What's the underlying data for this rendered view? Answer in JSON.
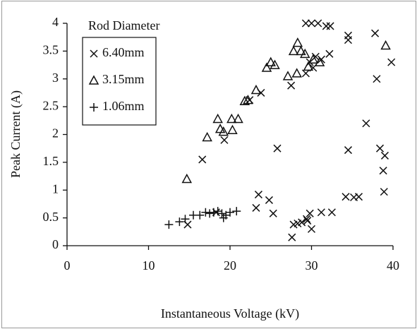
{
  "chart_data": {
    "type": "scatter",
    "xlabel": "Instantaneous Voltage (kV)",
    "ylabel": "Peak Current (A)",
    "legend_title": "Rod Diameter",
    "legend": "upper left",
    "xlim": [
      0,
      40
    ],
    "xticks": [
      0,
      10,
      20,
      30,
      40
    ],
    "ylim": [
      0,
      4
    ],
    "yticks": [
      0,
      0.5,
      1,
      1.5,
      2,
      2.5,
      3,
      3.5,
      4
    ],
    "series": [
      {
        "name": "6.40mm",
        "marker": "x",
        "color": "#111111",
        "x": [
          16.6,
          19.3,
          22.4,
          23.8,
          27.5,
          29.3,
          29.8,
          30.2,
          30.5,
          31.2,
          32.2,
          29.3,
          30.0,
          30.8,
          31.8,
          32.3,
          34.5,
          34.5,
          37.8,
          39.8,
          38.0,
          36.7,
          38.4,
          39.0,
          34.5,
          25.8,
          38.8,
          38.9,
          34.2,
          35.2,
          35.8,
          23.5,
          24.8,
          23.2,
          25.3,
          27.6,
          27.8,
          28.3,
          28.8,
          29.4,
          29.8,
          30.0,
          29.5,
          31.2,
          32.5,
          14.8,
          18.3
        ],
        "values": [
          1.55,
          1.9,
          2.62,
          2.75,
          2.88,
          3.1,
          3.3,
          3.2,
          3.4,
          3.35,
          3.45,
          4.0,
          4.0,
          4.0,
          3.95,
          3.95,
          3.78,
          3.7,
          3.82,
          3.3,
          3.0,
          2.2,
          1.75,
          1.62,
          1.72,
          1.75,
          1.35,
          0.97,
          0.88,
          0.87,
          0.88,
          0.92,
          0.82,
          0.68,
          0.58,
          0.15,
          0.38,
          0.4,
          0.42,
          0.48,
          0.58,
          0.3,
          0.45,
          0.6,
          0.6,
          0.38,
          0.6
        ]
      },
      {
        "name": "3.15mm",
        "marker": "triangle",
        "color": "#111111",
        "x": [
          14.7,
          17.2,
          18.5,
          18.8,
          19.2,
          20.2,
          20.3,
          21.0,
          21.8,
          22.2,
          23.2,
          24.5,
          25.0,
          25.5,
          27.1,
          27.8,
          28.3,
          28.2,
          28.7,
          29.2,
          29.6,
          30.2,
          31.0,
          39.1
        ],
        "values": [
          1.2,
          1.95,
          2.28,
          2.1,
          2.05,
          2.28,
          2.08,
          2.28,
          2.6,
          2.62,
          2.8,
          3.2,
          3.3,
          3.25,
          3.05,
          3.5,
          3.65,
          3.1,
          3.5,
          3.45,
          3.22,
          3.35,
          3.3,
          3.6
        ]
      },
      {
        "name": "1.06mm",
        "marker": "plus",
        "color": "#111111",
        "x": [
          12.5,
          13.8,
          14.5,
          15.5,
          16.3,
          17.0,
          17.5,
          18.0,
          18.5,
          19.0,
          19.5,
          20.0,
          20.8,
          19.2
        ],
        "values": [
          0.38,
          0.43,
          0.48,
          0.55,
          0.55,
          0.6,
          0.58,
          0.6,
          0.62,
          0.58,
          0.55,
          0.6,
          0.62,
          0.5
        ]
      }
    ]
  }
}
